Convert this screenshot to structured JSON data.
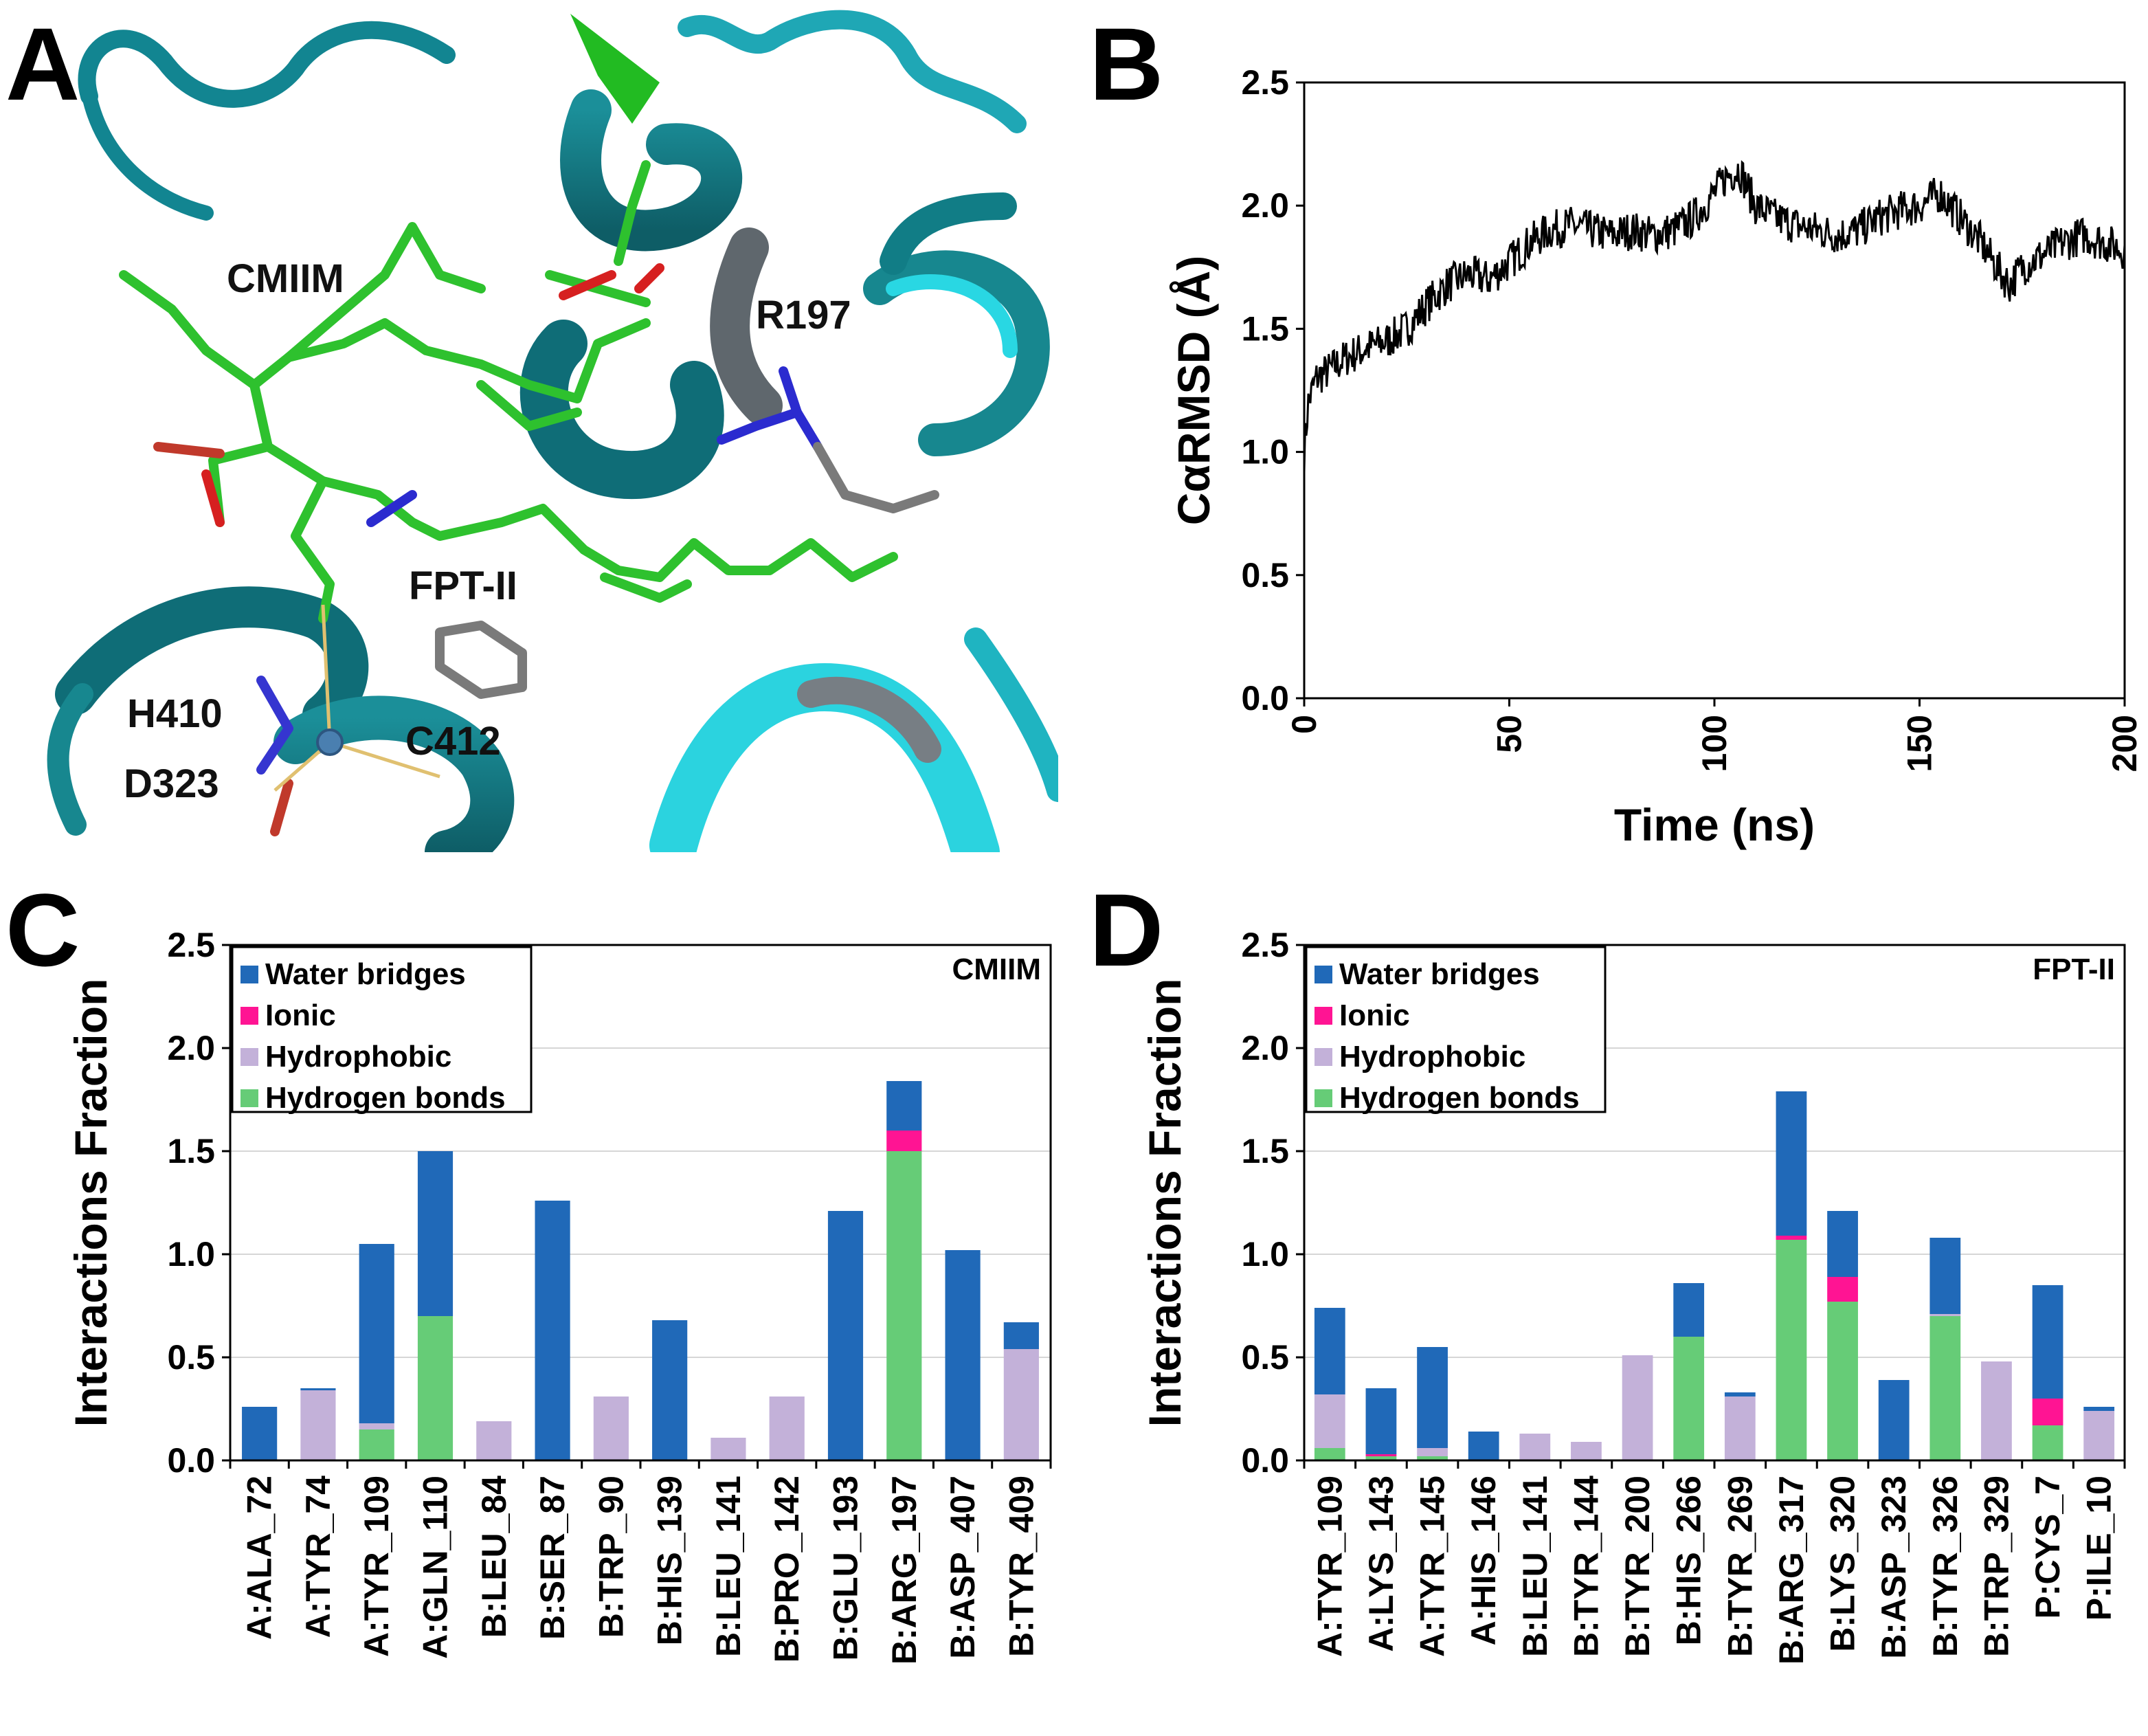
{
  "panels": {
    "a": "A",
    "b": "B",
    "c": "C",
    "d": "D"
  },
  "molecule": {
    "labels": [
      "CMIIM",
      "R197",
      "FPT-II",
      "H410",
      "D323",
      "C412"
    ],
    "colors": {
      "ribbon_dark": "#17808a",
      "ribbon_light": "#27d3e0",
      "ligand": "#2ec12e",
      "green_sheet": "#22bb22"
    }
  },
  "chart_data": [
    {
      "type": "line",
      "id": "rmsd",
      "title": "",
      "xlabel": "Time (ns)",
      "ylabel": "CαRMSD (Å)",
      "xlim": [
        0,
        200
      ],
      "ylim": [
        0,
        2.5
      ],
      "xticks": [
        "0",
        "50",
        "100",
        "150",
        "200"
      ],
      "yticks": [
        "0.0",
        "0.5",
        "1.0",
        "1.5",
        "2.0",
        "2.5"
      ],
      "series": [
        {
          "name": "CαRMSD",
          "color": "#000000",
          "points": [
            [
              0,
              1.0
            ],
            [
              1,
              1.2
            ],
            [
              3,
              1.3
            ],
            [
              6,
              1.33
            ],
            [
              10,
              1.38
            ],
            [
              15,
              1.42
            ],
            [
              20,
              1.45
            ],
            [
              25,
              1.5
            ],
            [
              30,
              1.6
            ],
            [
              35,
              1.68
            ],
            [
              40,
              1.72
            ],
            [
              45,
              1.7
            ],
            [
              50,
              1.77
            ],
            [
              55,
              1.85
            ],
            [
              60,
              1.9
            ],
            [
              65,
              1.92
            ],
            [
              70,
              1.9
            ],
            [
              75,
              1.88
            ],
            [
              80,
              1.9
            ],
            [
              85,
              1.88
            ],
            [
              90,
              1.9
            ],
            [
              95,
              1.95
            ],
            [
              100,
              2.05
            ],
            [
              103,
              2.12
            ],
            [
              106,
              2.15
            ],
            [
              110,
              2.0
            ],
            [
              115,
              1.95
            ],
            [
              120,
              1.92
            ],
            [
              125,
              1.9
            ],
            [
              130,
              1.88
            ],
            [
              135,
              1.9
            ],
            [
              140,
              1.95
            ],
            [
              145,
              1.98
            ],
            [
              150,
              2.0
            ],
            [
              155,
              2.05
            ],
            [
              160,
              1.95
            ],
            [
              165,
              1.85
            ],
            [
              170,
              1.72
            ],
            [
              172,
              1.68
            ],
            [
              175,
              1.75
            ],
            [
              180,
              1.8
            ],
            [
              185,
              1.85
            ],
            [
              190,
              1.88
            ],
            [
              195,
              1.85
            ],
            [
              200,
              1.82
            ]
          ]
        }
      ]
    },
    {
      "type": "bar",
      "id": "cmiim",
      "stacked": true,
      "title": "CMIIM",
      "xlabel": "",
      "ylabel": "Interactions Fraction",
      "ylim": [
        0,
        2.5
      ],
      "yticks": [
        "0.0",
        "0.5",
        "1.0",
        "1.5",
        "2.0",
        "2.5"
      ],
      "grid": true,
      "legend_position": "top-left",
      "categories": [
        "A:ALA_72",
        "A:TYR_74",
        "A:TYR_109",
        "A:GLN_110",
        "B:LEU_84",
        "B:SER_87",
        "B:TRP_90",
        "B:HIS_139",
        "B:LEU_141",
        "B:PRO_142",
        "B:GLU_193",
        "B:ARG_197",
        "B:ASP_407",
        "B:TYR_409"
      ],
      "series": [
        {
          "name": "Hydrogen bonds",
          "color": "#66cc77",
          "values": [
            0,
            0,
            0.15,
            0.7,
            0,
            0,
            0,
            0,
            0,
            0,
            0,
            1.5,
            0,
            0
          ]
        },
        {
          "name": "Hydrophobic",
          "color": "#c3b1d9",
          "values": [
            0,
            0.34,
            0.03,
            0,
            0.19,
            0,
            0.31,
            0,
            0.11,
            0.31,
            0,
            0,
            0,
            0.54
          ]
        },
        {
          "name": "Ionic",
          "color": "#ff1493",
          "values": [
            0,
            0,
            0,
            0,
            0,
            0,
            0,
            0,
            0,
            0,
            0,
            0.1,
            0,
            0
          ]
        },
        {
          "name": "Water bridges",
          "color": "#2069b8",
          "values": [
            0.26,
            0.01,
            0.87,
            0.8,
            0,
            1.26,
            0,
            0.68,
            0,
            0,
            1.21,
            0.24,
            1.02,
            0.13
          ]
        }
      ],
      "legend_order": [
        "Water bridges",
        "Ionic",
        "Hydrophobic",
        "Hydrogen bonds"
      ]
    },
    {
      "type": "bar",
      "id": "fpt",
      "stacked": true,
      "title": "FPT-II",
      "xlabel": "",
      "ylabel": "Interactions Fraction",
      "ylim": [
        0,
        2.5
      ],
      "yticks": [
        "0.0",
        "0.5",
        "1.0",
        "1.5",
        "2.0",
        "2.5"
      ],
      "grid": true,
      "legend_position": "top-left",
      "categories": [
        "A:TYR_109",
        "A:LYS_143",
        "A:TYR_145",
        "A:HIS_146",
        "B:LEU_141",
        "B:TYR_144",
        "B:TYR_200",
        "B:HIS_266",
        "B:TYR_269",
        "B:ARG_317",
        "B:LYS_320",
        "B:ASP_323",
        "B:TYR_326",
        "B:TRP_329",
        "P:CYS_7",
        "P:ILE_10"
      ],
      "series": [
        {
          "name": "Hydrogen bonds",
          "color": "#66cc77",
          "values": [
            0.06,
            0.02,
            0.02,
            0,
            0,
            0,
            0,
            0.6,
            0,
            1.07,
            0.77,
            0,
            0.7,
            0,
            0.17,
            0
          ]
        },
        {
          "name": "Hydrophobic",
          "color": "#c3b1d9",
          "values": [
            0.26,
            0,
            0.04,
            0,
            0.13,
            0.09,
            0.51,
            0,
            0.31,
            0,
            0,
            0,
            0.01,
            0.48,
            0,
            0.24
          ]
        },
        {
          "name": "Ionic",
          "color": "#ff1493",
          "values": [
            0,
            0.01,
            0,
            0,
            0,
            0,
            0,
            0,
            0,
            0.02,
            0.12,
            0,
            0,
            0,
            0.13,
            0
          ]
        },
        {
          "name": "Water bridges",
          "color": "#2069b8",
          "values": [
            0.42,
            0.32,
            0.49,
            0.14,
            0,
            0,
            0,
            0.26,
            0.02,
            0.7,
            0.32,
            0.39,
            0.37,
            0,
            0.55,
            0.02
          ]
        }
      ],
      "legend_order": [
        "Water bridges",
        "Ionic",
        "Hydrophobic",
        "Hydrogen bonds"
      ]
    }
  ]
}
